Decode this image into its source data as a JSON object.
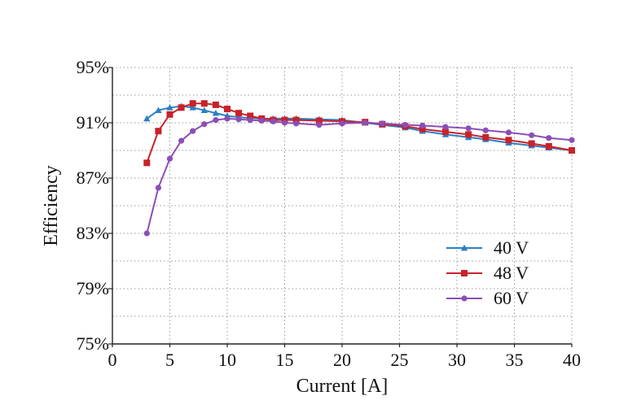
{
  "chart_data": {
    "type": "line",
    "title": "",
    "xlabel": "Current [A]",
    "ylabel": "Efficiency",
    "xlim": [
      0,
      40
    ],
    "ylim": [
      75,
      95
    ],
    "x_ticks": [
      0,
      5,
      10,
      15,
      20,
      25,
      30,
      35,
      40
    ],
    "x_tick_labels": [
      "0",
      "5",
      "10",
      "15",
      "20",
      "25",
      "30",
      "35",
      "40"
    ],
    "y_ticks": [
      75,
      79,
      83,
      87,
      91,
      95
    ],
    "y_tick_labels": [
      "75%",
      "79%",
      "83%",
      "87%",
      "91%",
      "95%"
    ],
    "minor_y_gridlines": [
      77,
      81,
      85,
      89,
      93
    ],
    "grid": true,
    "legend_position": "bottom-right",
    "series": [
      {
        "name": "40 V",
        "color": "#2a7fc4",
        "marker": "triangle",
        "x": [
          3,
          4,
          5,
          6,
          7,
          8,
          9,
          10,
          11,
          12,
          13,
          14,
          15,
          16,
          18,
          20,
          22,
          23.5,
          25.5,
          27,
          29,
          31,
          32.5,
          34.5,
          36.5,
          38,
          40
        ],
        "y": [
          91.3,
          91.9,
          92.1,
          92.2,
          92.1,
          91.9,
          91.7,
          91.5,
          91.4,
          91.35,
          91.3,
          91.3,
          91.3,
          91.3,
          91.25,
          91.2,
          91.0,
          90.85,
          90.65,
          90.4,
          90.15,
          89.95,
          89.8,
          89.55,
          89.35,
          89.2,
          89.0
        ]
      },
      {
        "name": "48 V",
        "color": "#c8222a",
        "marker": "square",
        "x": [
          3,
          4,
          5,
          6,
          7,
          8,
          9,
          10,
          11,
          12,
          13,
          14,
          15,
          16,
          18,
          20,
          22,
          23.5,
          25.5,
          27,
          29,
          31,
          32.5,
          34.5,
          36.5,
          38,
          40
        ],
        "y": [
          88.1,
          90.4,
          91.6,
          92.1,
          92.4,
          92.4,
          92.3,
          92.0,
          91.7,
          91.5,
          91.3,
          91.2,
          91.2,
          91.2,
          91.15,
          91.1,
          91.05,
          90.9,
          90.75,
          90.55,
          90.35,
          90.15,
          89.95,
          89.75,
          89.5,
          89.3,
          89.0
        ]
      },
      {
        "name": "60 V",
        "color": "#8b4fb6",
        "marker": "circle",
        "x": [
          3,
          4,
          5,
          6,
          7,
          8,
          9,
          10,
          11,
          12,
          13,
          14,
          15,
          16,
          18,
          20,
          22,
          23.5,
          25.5,
          27,
          29,
          31,
          32.5,
          34.5,
          36.5,
          38,
          40
        ],
        "y": [
          83.0,
          86.3,
          88.4,
          89.7,
          90.4,
          90.9,
          91.2,
          91.3,
          91.25,
          91.2,
          91.15,
          91.1,
          91.0,
          90.95,
          90.85,
          90.95,
          91.0,
          90.95,
          90.85,
          90.8,
          90.7,
          90.6,
          90.45,
          90.3,
          90.1,
          89.9,
          89.75
        ]
      }
    ]
  }
}
